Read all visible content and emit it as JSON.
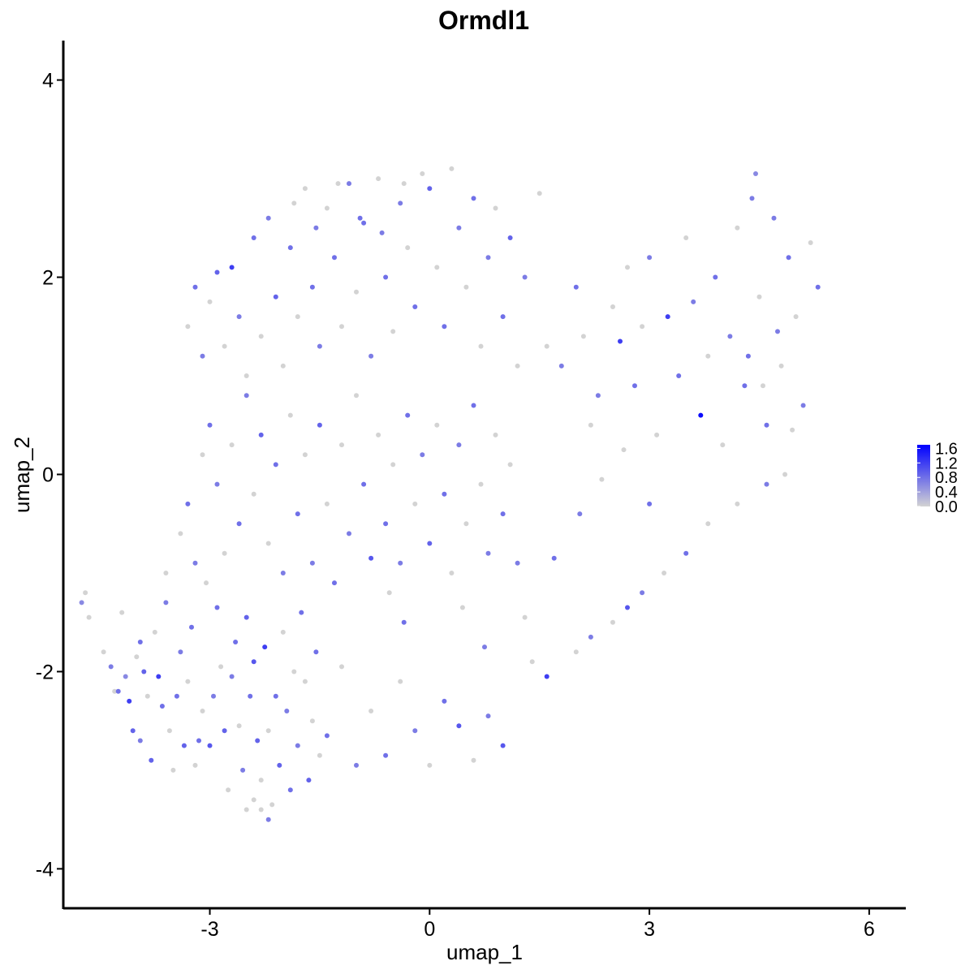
{
  "chart_data": {
    "type": "scatter",
    "title": "Ormdl1",
    "xlabel": "umap_1",
    "ylabel": "umap_2",
    "xlim": [
      -5.0,
      6.5
    ],
    "ylim": [
      -4.4,
      4.4
    ],
    "x_ticks": [
      -3,
      0,
      3,
      6
    ],
    "x_tick_labels": [
      "-3",
      "0",
      "3",
      "6"
    ],
    "y_ticks": [
      -4,
      -2,
      0,
      2,
      4
    ],
    "y_tick_labels": [
      "-4",
      "-2",
      "0",
      "2",
      "4"
    ],
    "grid": false,
    "legend_position": "right",
    "color_scale": {
      "low_color": "#d3d3d3",
      "high_color": "#0000ff",
      "min": 0.0,
      "max": 1.7,
      "ticks": [
        0.0,
        0.4,
        0.8,
        1.2,
        1.6
      ],
      "tick_labels": [
        "0.0",
        "0.4",
        "0.8",
        "1.2",
        "1.6"
      ]
    },
    "points": [
      [
        -4.75,
        -1.3,
        0.6
      ],
      [
        -4.7,
        -1.2,
        0.0
      ],
      [
        -4.65,
        -1.45,
        0.0
      ],
      [
        -4.45,
        -1.8,
        0.0
      ],
      [
        -4.25,
        -2.2,
        0.8
      ],
      [
        -4.2,
        -1.4,
        0.0
      ],
      [
        -4.15,
        -2.05,
        0.6
      ],
      [
        -4.1,
        -2.3,
        1.2
      ],
      [
        -4.05,
        -2.6,
        0.9
      ],
      [
        -4.0,
        -1.85,
        0.0
      ],
      [
        -3.95,
        -2.7,
        0.7
      ],
      [
        -3.9,
        -2.0,
        0.9
      ],
      [
        -3.85,
        -2.25,
        0.0
      ],
      [
        -3.8,
        -2.9,
        0.9
      ],
      [
        -3.75,
        -1.6,
        0.0
      ],
      [
        -3.7,
        -2.05,
        1.2
      ],
      [
        -3.65,
        -2.35,
        0.8
      ],
      [
        -3.6,
        -1.3,
        0.7
      ],
      [
        -3.55,
        -2.6,
        0.0
      ],
      [
        -3.5,
        -3.0,
        0.0
      ],
      [
        -3.45,
        -2.25,
        0.8
      ],
      [
        -3.4,
        -1.8,
        0.7
      ],
      [
        -3.35,
        -2.75,
        0.9
      ],
      [
        -3.3,
        -2.1,
        0.0
      ],
      [
        -3.25,
        -1.55,
        0.8
      ],
      [
        -3.2,
        -2.95,
        0.0
      ],
      [
        -3.15,
        -2.7,
        0.8
      ],
      [
        -3.1,
        -2.4,
        0.0
      ],
      [
        -3.05,
        -1.1,
        0.0
      ],
      [
        -3.0,
        -2.75,
        1.0
      ],
      [
        -2.95,
        -2.25,
        0.7
      ],
      [
        -2.9,
        -1.35,
        0.8
      ],
      [
        -2.85,
        -1.95,
        0.0
      ],
      [
        -2.8,
        -2.6,
        0.9
      ],
      [
        -2.75,
        -3.2,
        0.0
      ],
      [
        -2.7,
        -2.05,
        0.7
      ],
      [
        -2.65,
        -1.7,
        0.8
      ],
      [
        -2.6,
        -2.55,
        0.0
      ],
      [
        -2.55,
        -3.0,
        0.7
      ],
      [
        -2.5,
        -1.45,
        0.9
      ],
      [
        -2.45,
        -2.25,
        0.8
      ],
      [
        -2.4,
        -1.9,
        1.0
      ],
      [
        -2.35,
        -2.7,
        0.9
      ],
      [
        -2.3,
        -3.1,
        0.0
      ],
      [
        -2.25,
        -1.75,
        1.2
      ],
      [
        -2.2,
        -2.6,
        0.0
      ],
      [
        -2.15,
        -3.35,
        0.0
      ],
      [
        -2.1,
        -2.25,
        0.8
      ],
      [
        -2.05,
        -2.95,
        0.9
      ],
      [
        -2.0,
        -1.6,
        0.0
      ],
      [
        -1.95,
        -2.4,
        0.7
      ],
      [
        -1.9,
        -3.2,
        0.8
      ],
      [
        -1.85,
        -2.0,
        0.0
      ],
      [
        -1.8,
        -2.75,
        0.7
      ],
      [
        -1.75,
        -1.4,
        0.8
      ],
      [
        -1.7,
        -2.1,
        0.0
      ],
      [
        -1.65,
        -3.1,
        0.9
      ],
      [
        -1.6,
        -2.5,
        0.0
      ],
      [
        -1.55,
        -1.8,
        0.8
      ],
      [
        -1.5,
        -2.85,
        0.0
      ],
      [
        -2.2,
        -3.5,
        0.7
      ],
      [
        -2.3,
        -3.4,
        0.0
      ],
      [
        -2.4,
        -3.3,
        0.0
      ],
      [
        -2.5,
        -3.4,
        0.0
      ],
      [
        -3.6,
        -1.0,
        0.0
      ],
      [
        -3.4,
        -0.6,
        0.0
      ],
      [
        -3.3,
        -0.3,
        0.8
      ],
      [
        -3.2,
        -0.9,
        0.7
      ],
      [
        -3.1,
        0.2,
        0.0
      ],
      [
        -3.0,
        0.5,
        0.8
      ],
      [
        -2.9,
        -0.1,
        0.7
      ],
      [
        -2.8,
        -0.8,
        0.0
      ],
      [
        -2.7,
        0.3,
        0.0
      ],
      [
        -2.6,
        -0.5,
        0.8
      ],
      [
        -2.5,
        0.8,
        0.7
      ],
      [
        -2.4,
        -0.2,
        0.0
      ],
      [
        -2.3,
        0.4,
        0.9
      ],
      [
        -2.2,
        -0.7,
        0.0
      ],
      [
        -2.1,
        0.1,
        0.8
      ],
      [
        -2.0,
        -1.0,
        0.7
      ],
      [
        -1.9,
        0.6,
        0.0
      ],
      [
        -1.8,
        -0.4,
        0.8
      ],
      [
        -1.7,
        0.2,
        0.0
      ],
      [
        -1.6,
        -0.9,
        0.7
      ],
      [
        -1.5,
        0.5,
        0.9
      ],
      [
        -1.4,
        -0.3,
        0.0
      ],
      [
        -1.3,
        -1.1,
        0.8
      ],
      [
        -1.2,
        0.3,
        0.0
      ],
      [
        -1.1,
        -0.6,
        0.7
      ],
      [
        -1.0,
        0.8,
        0.0
      ],
      [
        -0.9,
        -0.1,
        0.8
      ],
      [
        -0.8,
        -0.85,
        1.0
      ],
      [
        -0.7,
        0.4,
        0.0
      ],
      [
        -0.6,
        -0.5,
        0.8
      ],
      [
        -0.5,
        0.1,
        0.0
      ],
      [
        -0.4,
        -0.9,
        0.7
      ],
      [
        -0.3,
        0.6,
        0.8
      ],
      [
        -0.2,
        -0.3,
        0.0
      ],
      [
        -0.1,
        0.2,
        0.7
      ],
      [
        0.0,
        -0.7,
        0.9
      ],
      [
        0.1,
        0.5,
        0.0
      ],
      [
        0.2,
        -0.2,
        0.8
      ],
      [
        0.3,
        -1.0,
        0.0
      ],
      [
        0.4,
        0.3,
        0.7
      ],
      [
        0.5,
        -0.5,
        0.0
      ],
      [
        0.6,
        0.7,
        0.8
      ],
      [
        0.7,
        -0.1,
        0.0
      ],
      [
        0.8,
        -0.8,
        0.7
      ],
      [
        0.9,
        0.4,
        0.0
      ],
      [
        1.0,
        -0.4,
        0.8
      ],
      [
        1.1,
        0.1,
        0.0
      ],
      [
        1.2,
        -0.9,
        0.7
      ],
      [
        -3.3,
        1.5,
        0.0
      ],
      [
        -3.2,
        1.9,
        0.8
      ],
      [
        -3.1,
        1.2,
        0.7
      ],
      [
        -3.0,
        1.75,
        0.0
      ],
      [
        -2.9,
        2.05,
        0.9
      ],
      [
        -2.8,
        1.3,
        0.0
      ],
      [
        -2.7,
        2.1,
        1.2
      ],
      [
        -2.6,
        1.6,
        0.7
      ],
      [
        -2.5,
        1.0,
        0.0
      ],
      [
        -2.4,
        2.4,
        0.8
      ],
      [
        -2.3,
        1.4,
        0.0
      ],
      [
        -2.2,
        2.6,
        0.7
      ],
      [
        -2.1,
        1.8,
        0.9
      ],
      [
        -2.0,
        1.1,
        0.0
      ],
      [
        -1.9,
        2.3,
        0.8
      ],
      [
        -1.8,
        1.6,
        0.0
      ],
      [
        -1.7,
        2.9,
        0.0
      ],
      [
        -1.6,
        1.9,
        0.8
      ],
      [
        -1.5,
        1.3,
        0.7
      ],
      [
        -1.4,
        2.7,
        0.0
      ],
      [
        -1.3,
        2.2,
        0.8
      ],
      [
        -1.2,
        1.5,
        0.0
      ],
      [
        -1.1,
        2.95,
        0.7
      ],
      [
        -1.0,
        1.85,
        0.0
      ],
      [
        -0.9,
        2.55,
        0.8
      ],
      [
        -0.8,
        1.2,
        0.7
      ],
      [
        -0.7,
        3.0,
        0.0
      ],
      [
        -0.6,
        2.0,
        0.8
      ],
      [
        -0.5,
        1.45,
        0.0
      ],
      [
        -0.4,
        2.75,
        0.7
      ],
      [
        -0.3,
        2.3,
        0.0
      ],
      [
        -0.2,
        1.7,
        0.8
      ],
      [
        -0.1,
        3.05,
        0.0
      ],
      [
        0.0,
        2.9,
        0.9
      ],
      [
        0.1,
        2.1,
        0.0
      ],
      [
        0.2,
        1.5,
        0.8
      ],
      [
        0.3,
        3.1,
        0.0
      ],
      [
        0.4,
        2.5,
        0.7
      ],
      [
        0.5,
        1.9,
        0.0
      ],
      [
        0.6,
        2.8,
        0.8
      ],
      [
        0.7,
        1.3,
        0.0
      ],
      [
        0.8,
        2.2,
        0.7
      ],
      [
        0.9,
        2.7,
        0.0
      ],
      [
        1.0,
        1.6,
        0.8
      ],
      [
        1.1,
        2.4,
        0.9
      ],
      [
        1.2,
        1.1,
        0.0
      ],
      [
        1.3,
        2.0,
        0.7
      ],
      [
        1.5,
        2.85,
        0.0
      ],
      [
        1.6,
        1.3,
        0.0
      ],
      [
        1.8,
        1.1,
        0.7
      ],
      [
        2.0,
        1.9,
        0.8
      ],
      [
        2.2,
        0.5,
        0.0
      ],
      [
        2.1,
        1.4,
        0.0
      ],
      [
        2.3,
        0.8,
        0.7
      ],
      [
        2.5,
        1.7,
        0.0
      ],
      [
        2.6,
        1.35,
        1.2
      ],
      [
        2.7,
        2.1,
        0.0
      ],
      [
        2.8,
        0.9,
        0.8
      ],
      [
        2.9,
        1.5,
        0.0
      ],
      [
        3.0,
        2.2,
        0.7
      ],
      [
        3.1,
        0.4,
        0.0
      ],
      [
        3.25,
        1.6,
        1.2
      ],
      [
        3.4,
        1.0,
        0.8
      ],
      [
        3.5,
        2.4,
        0.0
      ],
      [
        3.6,
        1.75,
        0.7
      ],
      [
        3.7,
        0.6,
        1.6
      ],
      [
        3.8,
        1.2,
        0.0
      ],
      [
        3.9,
        2.0,
        0.8
      ],
      [
        4.0,
        0.3,
        0.0
      ],
      [
        4.1,
        1.4,
        0.7
      ],
      [
        4.2,
        2.5,
        0.0
      ],
      [
        4.3,
        0.9,
        0.8
      ],
      [
        4.4,
        2.8,
        0.7
      ],
      [
        4.45,
        3.05,
        0.6
      ],
      [
        4.5,
        1.8,
        0.0
      ],
      [
        4.6,
        0.5,
        0.8
      ],
      [
        4.7,
        2.6,
        0.7
      ],
      [
        4.8,
        1.1,
        0.0
      ],
      [
        4.9,
        2.2,
        0.8
      ],
      [
        5.0,
        1.6,
        0.0
      ],
      [
        5.1,
        0.7,
        0.7
      ],
      [
        5.2,
        2.35,
        0.0
      ],
      [
        5.3,
        1.9,
        0.8
      ],
      [
        4.85,
        0.0,
        0.0
      ],
      [
        4.6,
        -0.1,
        0.7
      ],
      [
        4.2,
        -0.3,
        0.0
      ],
      [
        3.8,
        -0.5,
        0.0
      ],
      [
        3.5,
        -0.8,
        0.8
      ],
      [
        3.2,
        -1.0,
        0.0
      ],
      [
        2.9,
        -1.2,
        0.7
      ],
      [
        2.7,
        -1.35,
        1.0
      ],
      [
        2.5,
        -1.5,
        0.0
      ],
      [
        2.2,
        -1.65,
        0.7
      ],
      [
        2.0,
        -1.8,
        0.0
      ],
      [
        1.6,
        -2.05,
        1.2
      ],
      [
        1.4,
        -1.9,
        0.0
      ],
      [
        1.0,
        -2.75,
        1.0
      ],
      [
        0.8,
        -2.45,
        0.7
      ],
      [
        0.6,
        -2.9,
        0.0
      ],
      [
        0.4,
        -2.55,
        1.0
      ],
      [
        0.2,
        -2.3,
        0.8
      ],
      [
        0.0,
        -2.95,
        0.0
      ],
      [
        -0.2,
        -2.6,
        0.7
      ],
      [
        -0.4,
        -2.1,
        0.0
      ],
      [
        -0.6,
        -2.85,
        0.8
      ],
      [
        -0.8,
        -2.4,
        0.0
      ],
      [
        -1.0,
        -2.95,
        0.7
      ],
      [
        -1.2,
        -1.95,
        0.0
      ],
      [
        -1.4,
        -2.65,
        0.8
      ],
      [
        -4.3,
        -2.2,
        0.0
      ],
      [
        -4.35,
        -1.95,
        0.7
      ],
      [
        -3.95,
        -1.7,
        0.8
      ],
      [
        -0.55,
        -1.2,
        0.0
      ],
      [
        -0.35,
        -1.5,
        0.8
      ],
      [
        0.45,
        -1.35,
        0.0
      ],
      [
        0.75,
        -1.75,
        0.7
      ],
      [
        1.3,
        -1.45,
        0.0
      ],
      [
        1.7,
        -0.85,
        0.8
      ],
      [
        2.05,
        -0.4,
        0.7
      ],
      [
        2.35,
        -0.05,
        0.0
      ],
      [
        2.65,
        0.25,
        0.0
      ],
      [
        3.0,
        -0.3,
        0.8
      ],
      [
        -1.85,
        2.75,
        0.0
      ],
      [
        -1.55,
        2.5,
        0.7
      ],
      [
        -1.25,
        2.95,
        0.0
      ],
      [
        -0.95,
        2.6,
        0.8
      ],
      [
        -0.65,
        2.45,
        0.7
      ],
      [
        -0.35,
        2.95,
        0.0
      ],
      [
        4.35,
        1.2,
        0.8
      ],
      [
        4.55,
        0.9,
        0.0
      ],
      [
        4.75,
        1.45,
        0.7
      ],
      [
        4.95,
        0.45,
        0.0
      ]
    ]
  }
}
